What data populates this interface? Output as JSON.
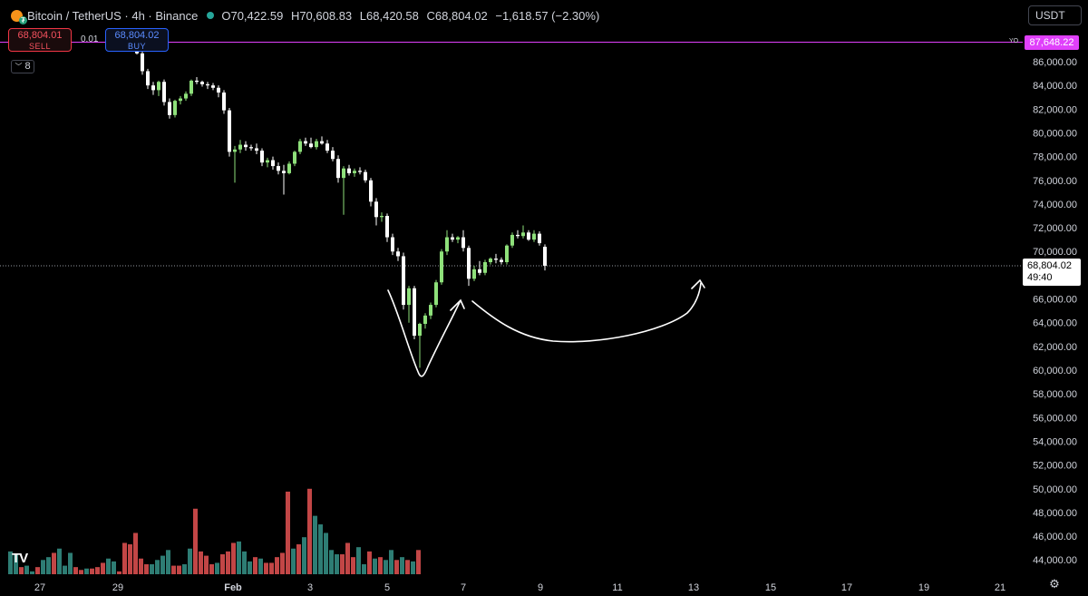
{
  "legend": {
    "symbol": "Bitcoin / TetherUS · 4h · Binance",
    "open": "O70,422.59",
    "high": "H70,608.83",
    "low": "L68,420.58",
    "close": "C68,804.02",
    "change": "−1,618.57 (−2.30%)"
  },
  "trade": {
    "sell_price": "68,804.01",
    "sell_label": "SELL",
    "spread": "0.01",
    "buy_price": "68,804.02",
    "buy_label": "BUY"
  },
  "indicators_count": "8",
  "currency": "USDT",
  "price_tag": {
    "price": "68,804.02",
    "countdown": "49:40"
  },
  "yo_line": {
    "label": "YO",
    "price": "87,648.22"
  },
  "colors": {
    "up": "#8ee07a",
    "down": "#ffffff",
    "vol_up": "#2e7d74",
    "vol_down": "#c24646",
    "yo": "#e040fb",
    "background": "#000000"
  },
  "icons": {
    "logo": "bitcoin-icon",
    "settings": "settings-icon",
    "brand": "tradingview-logo-icon"
  },
  "chart_data": {
    "type": "candlestick",
    "y_ticks": [
      "86,000.00",
      "84,000.00",
      "82,000.00",
      "80,000.00",
      "78,000.00",
      "76,000.00",
      "74,000.00",
      "72,000.00",
      "70,000.00",
      "66,000.00",
      "64,000.00",
      "62,000.00",
      "60,000.00",
      "58,000.00",
      "56,000.00",
      "54,000.00",
      "52,000.00",
      "50,000.00",
      "48,000.00",
      "46,000.00",
      "44,000.00"
    ],
    "x_ticks": [
      "27",
      "29",
      "Feb",
      "3",
      "5",
      "7",
      "9",
      "11",
      "13",
      "15",
      "17",
      "19",
      "21"
    ],
    "ylim": [
      43000,
      88400
    ],
    "current_price": 68804.02,
    "yo_price": 87648.22,
    "candles": [
      [
        87600,
        87900,
        86600,
        86700
      ],
      [
        86700,
        86900,
        84900,
        85200
      ],
      [
        85200,
        85400,
        83700,
        84000
      ],
      [
        84000,
        84300,
        83200,
        83600
      ],
      [
        83600,
        84400,
        83100,
        84300
      ],
      [
        84300,
        84500,
        82300,
        82600
      ],
      [
        82600,
        82900,
        81200,
        81500
      ],
      [
        81500,
        82800,
        81300,
        82700
      ],
      [
        82700,
        83100,
        82400,
        82900
      ],
      [
        82900,
        83500,
        82700,
        83300
      ],
      [
        83300,
        84500,
        83100,
        84400
      ],
      [
        84400,
        84700,
        84100,
        84300
      ],
      [
        84300,
        84400,
        83900,
        84100
      ],
      [
        84100,
        84300,
        83700,
        84000
      ],
      [
        84000,
        84200,
        83600,
        83800
      ],
      [
        83800,
        84000,
        83000,
        83400
      ],
      [
        83400,
        83600,
        81600,
        81900
      ],
      [
        81900,
        82100,
        78000,
        78400
      ],
      [
        78400,
        78900,
        75800,
        78600
      ],
      [
        78600,
        79400,
        78300,
        79000
      ],
      [
        79000,
        79300,
        78500,
        78800
      ],
      [
        78800,
        79000,
        78500,
        78700
      ],
      [
        78700,
        79100,
        78200,
        78500
      ],
      [
        78500,
        78700,
        77200,
        77500
      ],
      [
        77500,
        77900,
        77100,
        77700
      ],
      [
        77700,
        78000,
        76900,
        77200
      ],
      [
        77200,
        77500,
        76500,
        76800
      ],
      [
        76800,
        77300,
        74800,
        76600
      ],
      [
        76600,
        77600,
        76500,
        77400
      ],
      [
        77400,
        78500,
        77200,
        78400
      ],
      [
        78400,
        79500,
        78200,
        79300
      ],
      [
        79300,
        79600,
        78900,
        79100
      ],
      [
        79100,
        79600,
        78700,
        78800
      ],
      [
        78800,
        79500,
        78600,
        79300
      ],
      [
        79300,
        79700,
        79000,
        79100
      ],
      [
        79100,
        79400,
        78300,
        78500
      ],
      [
        78500,
        78800,
        77600,
        77800
      ],
      [
        77800,
        78100,
        75800,
        76200
      ],
      [
        76200,
        77200,
        73100,
        77000
      ],
      [
        77000,
        77300,
        76400,
        76600
      ],
      [
        76600,
        77000,
        76300,
        76800
      ],
      [
        76800,
        77100,
        76500,
        76700
      ],
      [
        76700,
        76900,
        75800,
        76000
      ],
      [
        76000,
        76200,
        73800,
        74200
      ],
      [
        74200,
        74500,
        72200,
        72900
      ],
      [
        72900,
        73300,
        72500,
        73000
      ],
      [
        73000,
        73200,
        70800,
        71200
      ],
      [
        71200,
        71500,
        69700,
        70000
      ],
      [
        70000,
        70300,
        69200,
        69600
      ],
      [
        69600,
        69900,
        65100,
        65500
      ],
      [
        65500,
        67100,
        64000,
        66900
      ],
      [
        66900,
        67100,
        62600,
        62900
      ],
      [
        62900,
        64000,
        60200,
        63900
      ],
      [
        63900,
        64800,
        63500,
        64600
      ],
      [
        64600,
        65700,
        64300,
        65500
      ],
      [
        65500,
        67600,
        65300,
        67400
      ],
      [
        67400,
        70200,
        67200,
        70000
      ],
      [
        70000,
        71800,
        69700,
        71200
      ],
      [
        71200,
        71500,
        70800,
        71000
      ],
      [
        71000,
        71300,
        70700,
        71200
      ],
      [
        71200,
        71800,
        70000,
        70300
      ],
      [
        70300,
        70500,
        67100,
        67700
      ],
      [
        67700,
        68800,
        67500,
        68500
      ],
      [
        68500,
        69200,
        68000,
        68200
      ],
      [
        68200,
        69300,
        68000,
        69100
      ],
      [
        69100,
        69500,
        68900,
        69400
      ],
      [
        69400,
        69800,
        69000,
        69300
      ],
      [
        69300,
        69500,
        68900,
        69100
      ],
      [
        69100,
        70600,
        68900,
        70500
      ],
      [
        70500,
        71600,
        70300,
        71400
      ],
      [
        71400,
        71800,
        71100,
        71300
      ],
      [
        71300,
        72200,
        71100,
        71600
      ],
      [
        71600,
        71800,
        70900,
        71000
      ],
      [
        71000,
        71800,
        70800,
        71500
      ],
      [
        71500,
        71700,
        70500,
        70700
      ],
      [
        70400,
        70600,
        68400,
        68800
      ]
    ],
    "volumes": [
      [
        0.56,
        1
      ],
      [
        0.54,
        1
      ],
      [
        0.45,
        0
      ],
      [
        0.46,
        1
      ],
      [
        0.42,
        1
      ],
      [
        0.45,
        0
      ],
      [
        0.5,
        1
      ],
      [
        0.52,
        1
      ],
      [
        0.55,
        0
      ],
      [
        0.58,
        1
      ],
      [
        0.46,
        1
      ],
      [
        0.55,
        1
      ],
      [
        0.45,
        0
      ],
      [
        0.43,
        0
      ],
      [
        0.44,
        1
      ],
      [
        0.44,
        0
      ],
      [
        0.45,
        0
      ],
      [
        0.48,
        0
      ],
      [
        0.51,
        1
      ],
      [
        0.49,
        1
      ],
      [
        0.42,
        0
      ],
      [
        0.62,
        0
      ],
      [
        0.61,
        0
      ],
      [
        0.69,
        0
      ],
      [
        0.51,
        0
      ],
      [
        0.47,
        0
      ],
      [
        0.47,
        1
      ],
      [
        0.5,
        1
      ],
      [
        0.53,
        1
      ],
      [
        0.57,
        1
      ],
      [
        0.46,
        0
      ],
      [
        0.46,
        0
      ],
      [
        0.47,
        1
      ],
      [
        0.58,
        1
      ],
      [
        0.86,
        0
      ],
      [
        0.56,
        0
      ],
      [
        0.53,
        0
      ],
      [
        0.47,
        0
      ],
      [
        0.48,
        1
      ],
      [
        0.54,
        0
      ],
      [
        0.56,
        0
      ],
      [
        0.62,
        0
      ],
      [
        0.63,
        1
      ],
      [
        0.56,
        1
      ],
      [
        0.49,
        1
      ],
      [
        0.52,
        0
      ],
      [
        0.51,
        1
      ],
      [
        0.48,
        0
      ],
      [
        0.48,
        0
      ],
      [
        0.52,
        0
      ],
      [
        0.55,
        0
      ],
      [
        0.98,
        0
      ],
      [
        0.58,
        1
      ],
      [
        0.61,
        0
      ],
      [
        0.66,
        1
      ],
      [
        1.0,
        0
      ],
      [
        0.81,
        1
      ],
      [
        0.75,
        1
      ],
      [
        0.69,
        1
      ],
      [
        0.57,
        1
      ],
      [
        0.54,
        1
      ],
      [
        0.54,
        0
      ],
      [
        0.62,
        0
      ],
      [
        0.52,
        0
      ],
      [
        0.59,
        1
      ],
      [
        0.47,
        1
      ],
      [
        0.56,
        0
      ],
      [
        0.51,
        1
      ],
      [
        0.52,
        0
      ],
      [
        0.5,
        1
      ],
      [
        0.57,
        1
      ],
      [
        0.5,
        0
      ],
      [
        0.52,
        1
      ],
      [
        0.5,
        0
      ],
      [
        0.49,
        1
      ],
      [
        0.57,
        0
      ]
    ]
  }
}
